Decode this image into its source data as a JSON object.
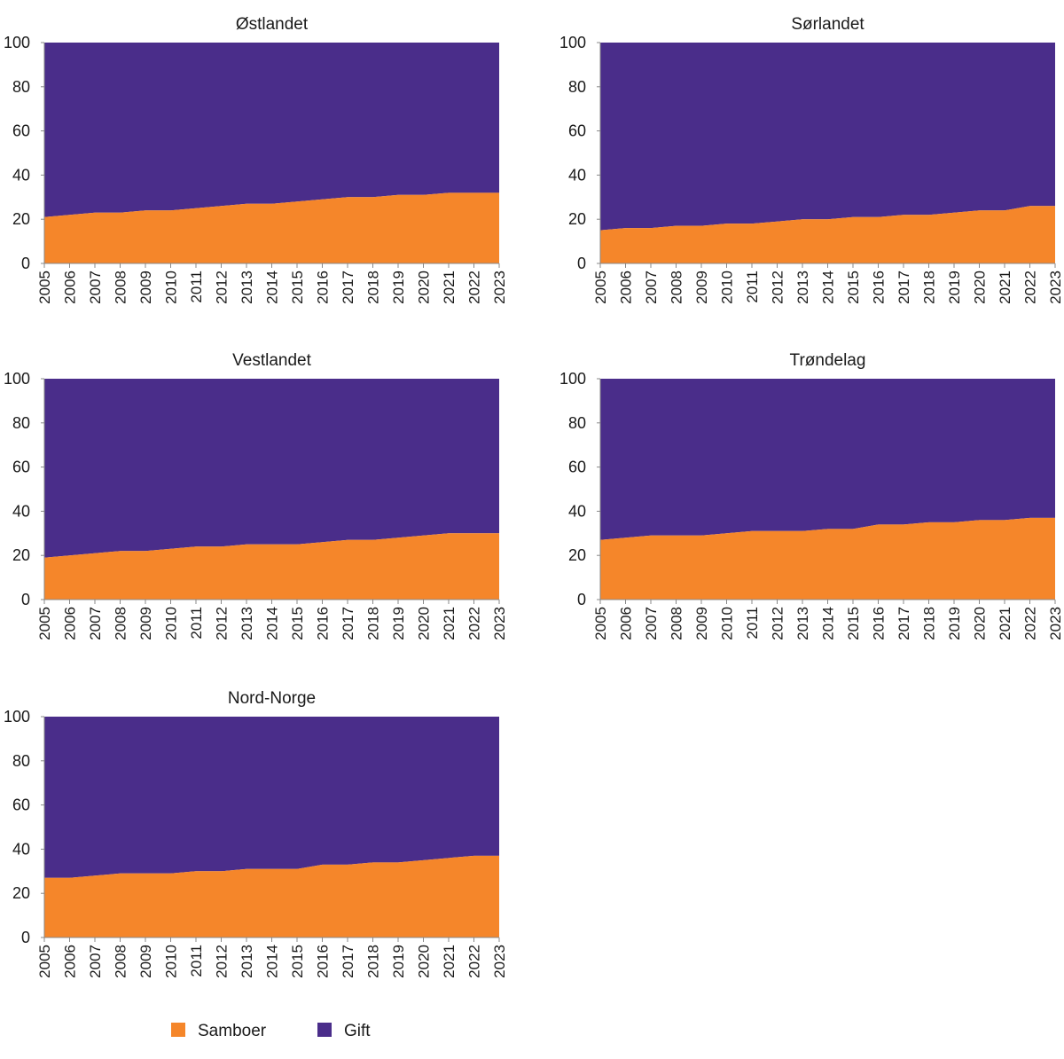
{
  "chart_data": {
    "type": "area",
    "stacked": true,
    "x": [
      2005,
      2006,
      2007,
      2008,
      2009,
      2010,
      2011,
      2012,
      2013,
      2014,
      2015,
      2016,
      2017,
      2018,
      2019,
      2020,
      2021,
      2022,
      2023
    ],
    "ylim": [
      0,
      100
    ],
    "yticks": [
      0,
      20,
      40,
      60,
      80,
      100
    ],
    "colors": {
      "Samboer": "#F5862A",
      "Gift": "#4A2D8A"
    },
    "legend": {
      "placement": "bottom-left",
      "entries": [
        "Samboer",
        "Gift"
      ]
    },
    "panels": [
      {
        "title": "Østlandet",
        "samboer": [
          21,
          22,
          23,
          23,
          24,
          24,
          25,
          26,
          27,
          27,
          28,
          29,
          30,
          30,
          31,
          31,
          32,
          32,
          32
        ]
      },
      {
        "title": "Sørlandet",
        "samboer": [
          15,
          16,
          16,
          17,
          17,
          18,
          18,
          19,
          20,
          20,
          21,
          21,
          22,
          22,
          23,
          24,
          24,
          26,
          26
        ]
      },
      {
        "title": "Vestlandet",
        "samboer": [
          19,
          20,
          21,
          22,
          22,
          23,
          24,
          24,
          25,
          25,
          25,
          26,
          27,
          27,
          28,
          29,
          30,
          30,
          30
        ]
      },
      {
        "title": "Trøndelag",
        "samboer": [
          27,
          28,
          29,
          29,
          29,
          30,
          31,
          31,
          31,
          32,
          32,
          34,
          34,
          35,
          35,
          36,
          36,
          37,
          37
        ]
      },
      {
        "title": "Nord-Norge",
        "samboer": [
          27,
          27,
          28,
          29,
          29,
          29,
          30,
          30,
          31,
          31,
          31,
          33,
          33,
          34,
          34,
          35,
          36,
          37,
          37
        ]
      }
    ]
  }
}
